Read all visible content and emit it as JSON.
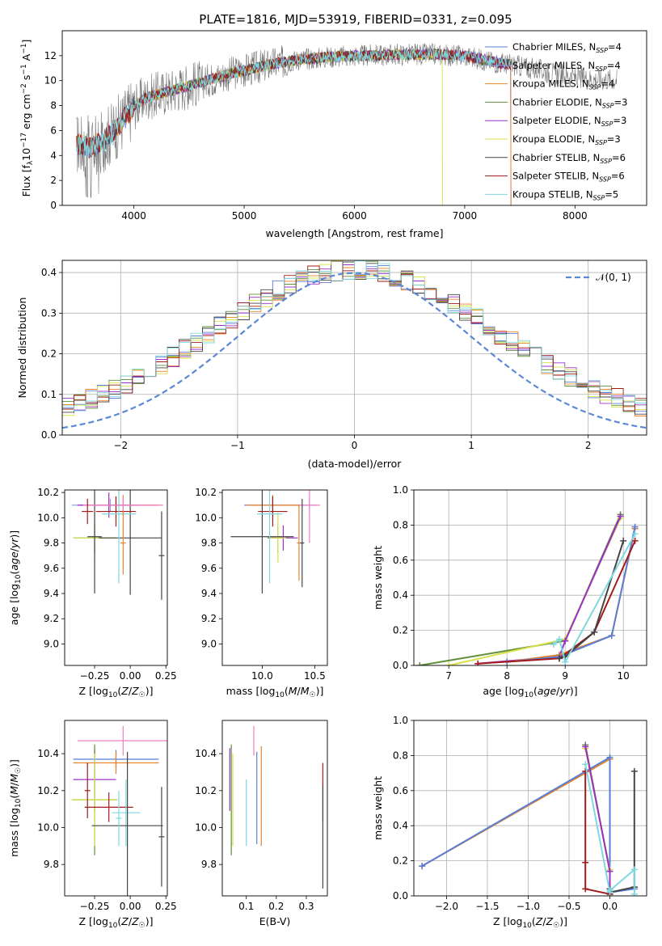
{
  "figure_title": "PLATE=1816, MJD=53919, FIBERID=0331, z=0.095",
  "colors": {
    "chabrier_miles": "#5a7fd6",
    "salpeter_miles": "#8fa3e0",
    "kroupa_miles": "#e8832a",
    "chabrier_elodie": "#5f8f3a",
    "salpeter_elodie": "#9b30c8",
    "kroupa_elodie": "#d8e04a",
    "chabrier_stelib": "#454545",
    "salpeter_stelib": "#a31a1a",
    "kroupa_stelib": "#7fd8e0",
    "normal_curve": "#5a88d6",
    "pink": "#ef7fc0"
  },
  "chart_data": [
    {
      "id": "spectrum",
      "type": "line",
      "xlabel": "wavelength [Angstrom, rest frame]",
      "ylabel": "Flux [f_λ 10^-17 erg cm^-2 s^-1 A^-1]",
      "xlim": [
        3350,
        8650
      ],
      "ylim": [
        0,
        14
      ],
      "xticks": [
        "4000",
        "5000",
        "6000",
        "7000",
        "8000"
      ],
      "yticks": [
        "0",
        "2",
        "4",
        "6",
        "8",
        "10",
        "12"
      ],
      "grid": false,
      "legend_position": "top-right",
      "legend": [
        "Chabrier MILES, N_SSP=4",
        "Salpeter MILES, N_SSP=4",
        "Kroupa MILES, N_SSP=4",
        "Chabrier ELODIE, N_SSP=3",
        "Salpeter ELODIE, N_SSP=3",
        "Kroupa ELODIE, N_SSP=3",
        "Chabrier STELIB, N_SSP=6",
        "Salpeter STELIB, N_SSP=6",
        "Kroupa STELIB, N_SSP=5"
      ],
      "continuum": {
        "x": [
          3500,
          3600,
          3700,
          3800,
          3900,
          4000,
          4100,
          4300,
          4500,
          4700,
          4900,
          5100,
          5300,
          5500,
          5800,
          6100,
          6400,
          6700,
          7000,
          7200,
          7400,
          7600,
          7800,
          8000,
          8200
        ],
        "y": [
          4.9,
          4.6,
          5.0,
          5.8,
          6.8,
          7.9,
          8.6,
          9.1,
          9.6,
          10.1,
          10.6,
          11.0,
          11.4,
          11.7,
          11.9,
          12.0,
          12.1,
          12.1,
          12.0,
          11.6,
          11.3,
          11.0,
          10.6,
          10.3,
          10.1
        ]
      },
      "data_range": [
        3480,
        8380
      ],
      "model_range": [
        3480,
        7420
      ]
    },
    {
      "id": "residual_histogram",
      "type": "bar",
      "xlabel": "(data-model)/error",
      "ylabel": "Normed distribution",
      "xlim": [
        -2.5,
        2.5
      ],
      "ylim": [
        0,
        0.43
      ],
      "xticks": [
        "−2",
        "−1",
        "0",
        "1",
        "2"
      ],
      "yticks": [
        "0.0",
        "0.1",
        "0.2",
        "0.3",
        "0.4"
      ],
      "grid": true,
      "legend": [
        "𝒩(0, 1)"
      ],
      "legend_position": "top-right",
      "bin_width": 0.1
    },
    {
      "id": "age_vs_Z",
      "type": "scatter",
      "xlabel": "Z [log10(Z/Z☉)]",
      "ylabel": "age [log10(age/yr)]",
      "xlim": [
        -0.46,
        0.26
      ],
      "ylim": [
        8.83,
        10.22
      ],
      "xticks": [
        "−0.25",
        "0.00",
        "0.25"
      ],
      "yticks": [
        "9.0",
        "9.2",
        "9.4",
        "9.6",
        "9.8",
        "10.0",
        "10.2"
      ],
      "grid": false,
      "errorbars": [
        {
          "model": "chabrier_miles",
          "x": -0.1,
          "xerr": 0.27,
          "y": 10.1,
          "yerr": 0.06
        },
        {
          "model": "salpeter_miles",
          "x": -0.14,
          "xerr": 0.27,
          "y": 10.1,
          "yerr": 0.05
        },
        {
          "model": "kroupa_miles",
          "x": -0.05,
          "xerr": 0.25,
          "y": 10.1,
          "yerr": 0.08
        },
        {
          "model": "chabrier_elodie",
          "x": -0.25,
          "xerr": 0.15,
          "y": 9.84,
          "yerr": 0.12
        },
        {
          "model": "salpeter_elodie",
          "x": -0.15,
          "xerr": 0.22,
          "y": 10.1,
          "yerr": 0.1
        },
        {
          "model": "kroupa_elodie",
          "x": -0.25,
          "xerr": 0.15,
          "y": 9.84,
          "yerr": 0.2
        },
        {
          "model": "chabrier_stelib",
          "x": 0.0,
          "xerr": 0.22,
          "y": 9.84,
          "yerr": 0.45
        },
        {
          "model": "salpeter_stelib",
          "x": -0.1,
          "xerr": 0.14,
          "y": 10.05,
          "yerr": 0.12
        },
        {
          "model": "kroupa_stelib",
          "x": -0.08,
          "xerr": 0.12,
          "y": 10.03,
          "yerr": 0.55
        },
        {
          "model": "chabrier_stelib",
          "x": -0.25,
          "xerr": 0.05,
          "y": 9.85,
          "yerr": 0.45
        },
        {
          "model": "pink",
          "x": -0.05,
          "xerr": 0.28,
          "y": 10.1,
          "yerr": 0.05
        },
        {
          "model": "salpeter_stelib",
          "x": -0.3,
          "xerr": 0.04,
          "y": 10.05,
          "yerr": 0.1
        },
        {
          "model": "chabrier_stelib",
          "x": 0.22,
          "xerr": 0.02,
          "y": 9.7,
          "yerr": 0.35
        },
        {
          "model": "kroupa_miles",
          "x": -0.05,
          "xerr": 0.02,
          "y": 9.8,
          "yerr": 0.25
        }
      ]
    },
    {
      "id": "age_vs_mass",
      "type": "scatter",
      "xlabel": "mass [log10(M/M☉)]",
      "ylabel": "",
      "xlim": [
        9.62,
        10.62
      ],
      "ylim": [
        8.83,
        10.22
      ],
      "xticks": [
        "10.0",
        "10.5"
      ],
      "yticks": [
        "9.0",
        "9.2",
        "9.4",
        "9.6",
        "9.8",
        "10.0",
        "10.2"
      ],
      "grid": false,
      "errorbars": [
        {
          "model": "chabrier_miles",
          "x": 10.1,
          "xerr": 0.27,
          "y": 10.1,
          "yerr": 0.06
        },
        {
          "model": "salpeter_miles",
          "x": 10.45,
          "xerr": 0.07,
          "y": 10.1,
          "yerr": 0.05
        },
        {
          "model": "kroupa_miles",
          "x": 10.1,
          "xerr": 0.25,
          "y": 10.1,
          "yerr": 0.08
        },
        {
          "model": "chabrier_elodie",
          "x": 10.15,
          "xerr": 0.1,
          "y": 9.84,
          "yerr": 0.12
        },
        {
          "model": "salpeter_elodie",
          "x": 10.2,
          "xerr": 0.14,
          "y": 9.84,
          "yerr": 0.1
        },
        {
          "model": "kroupa_elodie",
          "x": 10.15,
          "xerr": 0.08,
          "y": 9.84,
          "yerr": 0.2
        },
        {
          "model": "chabrier_stelib",
          "x": 10.0,
          "xerr": 0.3,
          "y": 9.85,
          "yerr": 0.45
        },
        {
          "model": "salpeter_stelib",
          "x": 10.1,
          "xerr": 0.14,
          "y": 10.05,
          "yerr": 0.12
        },
        {
          "model": "kroupa_stelib",
          "x": 10.07,
          "xerr": 0.12,
          "y": 10.03,
          "yerr": 0.55
        },
        {
          "model": "pink",
          "x": 10.45,
          "xerr": 0.1,
          "y": 10.1,
          "yerr": 0.3
        },
        {
          "model": "kroupa_miles",
          "x": 10.35,
          "xerr": 0.02,
          "y": 9.8,
          "yerr": 0.3
        },
        {
          "model": "chabrier_stelib",
          "x": 10.38,
          "xerr": 0.02,
          "y": 9.8,
          "yerr": 0.35
        }
      ]
    },
    {
      "id": "mass_weight_vs_age",
      "type": "line",
      "xlabel": "age [log10(age/yr)]",
      "ylabel": "mass weight",
      "xlim": [
        6.4,
        10.4
      ],
      "ylim": [
        0,
        1.0
      ],
      "xticks": [
        "7",
        "8",
        "9",
        "10"
      ],
      "yticks": [
        "0.0",
        "0.2",
        "0.4",
        "0.6",
        "0.8",
        "1.0"
      ],
      "grid": true,
      "series": [
        {
          "model": "chabrier_elodie",
          "x": [
            6.5,
            9.0,
            9.95
          ],
          "y": [
            0.0,
            0.14,
            0.86
          ]
        },
        {
          "model": "kroupa_elodie",
          "x": [
            7.0,
            9.0,
            9.95
          ],
          "y": [
            0.0,
            0.15,
            0.84
          ]
        },
        {
          "model": "salpeter_elodie",
          "x": [
            7.5,
            8.9,
            9.0,
            9.95
          ],
          "y": [
            0.01,
            0.05,
            0.14,
            0.85
          ]
        },
        {
          "model": "kroupa_miles",
          "x": [
            8.0,
            8.9,
            9.8,
            10.2
          ],
          "y": [
            0.02,
            0.06,
            0.17,
            0.78
          ]
        },
        {
          "model": "chabrier_miles",
          "x": [
            8.0,
            8.9,
            9.8,
            10.2
          ],
          "y": [
            0.02,
            0.05,
            0.17,
            0.79
          ]
        },
        {
          "model": "salpeter_stelib",
          "x": [
            7.5,
            8.9,
            9.5,
            10.2
          ],
          "y": [
            0.01,
            0.04,
            0.19,
            0.71
          ]
        },
        {
          "model": "chabrier_stelib",
          "x": [
            8.9,
            9.0,
            9.5,
            10.0
          ],
          "y": [
            0.04,
            0.05,
            0.19,
            0.71
          ]
        },
        {
          "model": "kroupa_stelib",
          "x": [
            8.8,
            8.9,
            9.0,
            10.2
          ],
          "y": [
            0.12,
            0.15,
            0.02,
            0.75
          ]
        }
      ]
    },
    {
      "id": "mass_vs_Z",
      "type": "scatter",
      "xlabel": "Z [log10(Z/Z☉)]",
      "ylabel": "mass [log10(M/M☉)]",
      "xlim": [
        -0.46,
        0.26
      ],
      "ylim": [
        9.63,
        10.58
      ],
      "xticks": [
        "−0.25",
        "0.00",
        "0.25"
      ],
      "yticks": [
        "9.8",
        "10.0",
        "10.2",
        "10.4"
      ],
      "grid": false,
      "errorbars": [
        {
          "model": "pink",
          "x": -0.05,
          "xerr": 0.32,
          "y": 10.47,
          "yerr": 0.08
        },
        {
          "model": "chabrier_miles",
          "x": -0.1,
          "xerr": 0.3,
          "y": 10.37,
          "yerr": 0.05
        },
        {
          "model": "kroupa_miles",
          "x": -0.1,
          "xerr": 0.3,
          "y": 10.35,
          "yerr": 0.06
        },
        {
          "model": "salpeter_elodie",
          "x": -0.25,
          "xerr": 0.15,
          "y": 10.26,
          "yerr": 0.17
        },
        {
          "model": "chabrier_elodie",
          "x": -0.25,
          "xerr": 0.16,
          "y": 10.15,
          "yerr": 0.3
        },
        {
          "model": "kroupa_elodie",
          "x": -0.25,
          "xerr": 0.16,
          "y": 10.15,
          "yerr": 0.25
        },
        {
          "model": "salpeter_stelib",
          "x": -0.15,
          "xerr": 0.17,
          "y": 10.11,
          "yerr": 0.08
        },
        {
          "model": "kroupa_stelib",
          "x": -0.03,
          "xerr": 0.1,
          "y": 10.08,
          "yerr": 0.18
        },
        {
          "model": "chabrier_stelib",
          "x": -0.02,
          "xerr": 0.25,
          "y": 10.01,
          "yerr": 0.4
        },
        {
          "model": "salpeter_stelib",
          "x": -0.3,
          "xerr": 0.02,
          "y": 10.2,
          "yerr": 0.15
        },
        {
          "model": "chabrier_stelib",
          "x": 0.22,
          "xerr": 0.02,
          "y": 9.95,
          "yerr": 0.27
        },
        {
          "model": "kroupa_stelib",
          "x": -0.08,
          "xerr": 0.02,
          "y": 10.05,
          "yerr": 0.15
        }
      ]
    },
    {
      "id": "mass_vs_ebv",
      "type": "scatter",
      "xlabel": "E(B-V)",
      "ylabel": "",
      "xlim": [
        0.02,
        0.37
      ],
      "ylim": [
        9.63,
        10.58
      ],
      "xticks": [
        "0.1",
        "0.2",
        "0.3"
      ],
      "yticks": [
        "9.8",
        "10.0",
        "10.2",
        "10.4"
      ],
      "grid": false,
      "errorbars": [
        {
          "model": "salpeter_elodie",
          "x": 0.045,
          "y": 10.26,
          "yerr": 0.17
        },
        {
          "model": "chabrier_elodie",
          "x": 0.05,
          "y": 10.15,
          "yerr": 0.3
        },
        {
          "model": "kroupa_elodie",
          "x": 0.055,
          "y": 10.15,
          "yerr": 0.25
        },
        {
          "model": "kroupa_stelib",
          "x": 0.1,
          "y": 10.08,
          "yerr": 0.18
        },
        {
          "model": "pink",
          "x": 0.125,
          "y": 10.47,
          "yerr": 0.08
        },
        {
          "model": "chabrier_miles",
          "x": 0.135,
          "y": 10.16,
          "yerr": 0.25
        },
        {
          "model": "kroupa_miles",
          "x": 0.15,
          "y": 10.17,
          "yerr": 0.27
        },
        {
          "model": "salpeter_stelib",
          "x": 0.355,
          "y": 10.19,
          "yerr": 0.16
        },
        {
          "model": "chabrier_stelib",
          "x": 0.355,
          "y": 9.95,
          "yerr": 0.28
        }
      ]
    },
    {
      "id": "mass_weight_vs_Z",
      "type": "line",
      "xlabel": "Z [log10(Z/Z☉)]",
      "ylabel": "mass weight",
      "xlim": [
        -2.4,
        0.45
      ],
      "ylim": [
        0,
        1.0
      ],
      "xticks": [
        "−2.0",
        "−1.5",
        "−1.0",
        "−0.5",
        "0.0"
      ],
      "yticks": [
        "0.0",
        "0.2",
        "0.4",
        "0.6",
        "0.8",
        "1.0"
      ],
      "grid": true,
      "series": [
        {
          "model": "kroupa_miles",
          "x": [
            -2.3,
            0.0,
            0.0,
            0.3
          ],
          "y": [
            0.17,
            0.78,
            0.02,
            0.05
          ]
        },
        {
          "model": "chabrier_miles",
          "x": [
            -2.3,
            0.0,
            0.0,
            0.3
          ],
          "y": [
            0.17,
            0.79,
            0.02,
            0.04
          ]
        },
        {
          "model": "chabrier_elodie",
          "x": [
            -0.3,
            0.0,
            0.0
          ],
          "y": [
            0.86,
            0.14,
            0.0
          ]
        },
        {
          "model": "kroupa_elodie",
          "x": [
            -0.3,
            0.0,
            0.0
          ],
          "y": [
            0.84,
            0.15,
            0.0
          ]
        },
        {
          "model": "salpeter_elodie",
          "x": [
            -0.3,
            0.0,
            0.0
          ],
          "y": [
            0.85,
            0.14,
            0.01
          ]
        },
        {
          "model": "salpeter_stelib",
          "x": [
            -0.3,
            -0.3,
            -0.3,
            0.0
          ],
          "y": [
            0.71,
            0.19,
            0.04,
            0.01
          ]
        },
        {
          "model": "chabrier_stelib",
          "x": [
            0.3,
            0.3,
            0.0,
            0.0
          ],
          "y": [
            0.71,
            0.05,
            0.02,
            0.04
          ]
        },
        {
          "model": "kroupa_stelib",
          "x": [
            -0.3,
            0.0,
            0.0,
            0.3,
            0.3
          ],
          "y": [
            0.75,
            0.02,
            0.03,
            0.15,
            0.01
          ]
        }
      ]
    }
  ]
}
